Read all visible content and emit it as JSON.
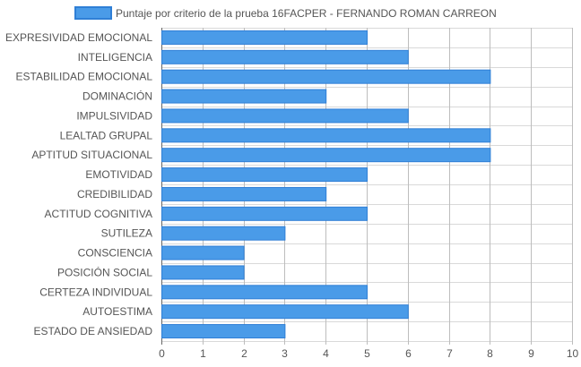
{
  "chart_data": {
    "type": "bar",
    "orientation": "horizontal",
    "legend_position": "top-center",
    "grid": true,
    "colors": {
      "bar_fill": "#4a9be8",
      "bar_stroke": "#2f7fd6",
      "grid": "#d9d9d9",
      "axis": "#999999",
      "text": "#555555"
    },
    "series": [
      {
        "name": "Puntaje por criterio de la prueba 16FACPER - FERNANDO ROMAN CARREON",
        "values": [
          5,
          6,
          8,
          4,
          6,
          8,
          8,
          5,
          4,
          5,
          3,
          2,
          2,
          5,
          6,
          3
        ]
      }
    ],
    "categories": [
      "EXPRESIVIDAD EMOCIONAL",
      "INTELIGENCIA",
      "ESTABILIDAD EMOCIONAL",
      "DOMINACIÓN",
      "IMPULSIVIDAD",
      "LEALTAD GRUPAL",
      "APTITUD SITUACIONAL",
      "EMOTIVIDAD",
      "CREDIBILIDAD",
      "ACTITUD COGNITIVA",
      "SUTILEZA",
      "CONSCIENCIA",
      "POSICIÓN SOCIAL",
      "CERTEZA INDIVIDUAL",
      "AUTOESTIMA",
      "ESTADO DE ANSIEDAD"
    ],
    "xlim": [
      0,
      10
    ],
    "xticks": [
      "0",
      "1",
      "2",
      "3",
      "4",
      "5",
      "6",
      "7",
      "8",
      "9",
      "10"
    ]
  }
}
